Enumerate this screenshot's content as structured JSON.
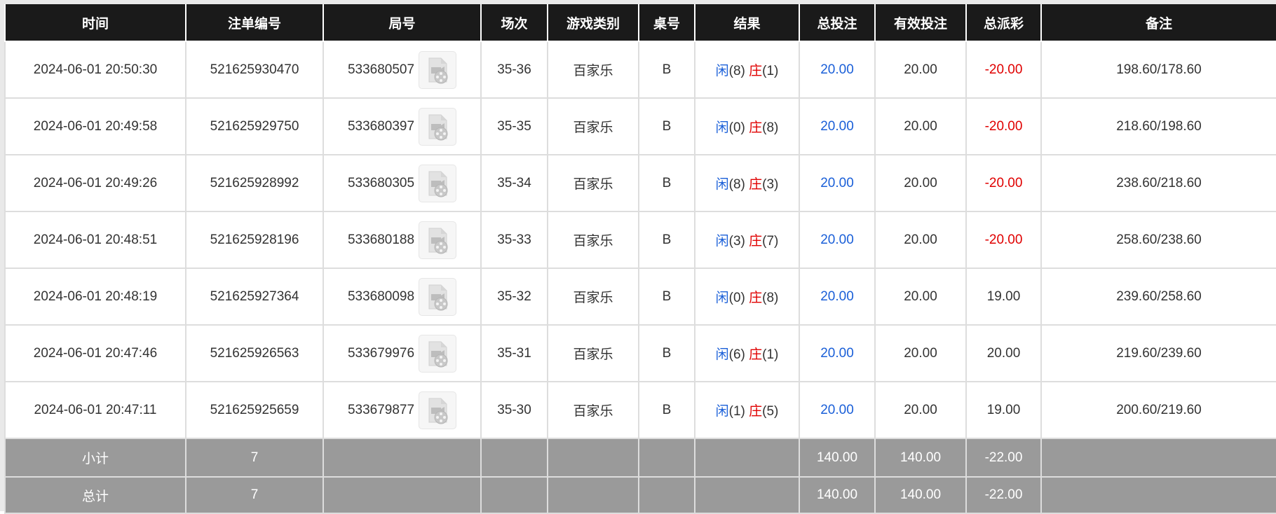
{
  "colors": {
    "header_bg": "#1a1a1a",
    "blue": "#1a5fd8",
    "red": "#e00000",
    "summary_bg": "#9a9a9a"
  },
  "headers": [
    "时间",
    "注单编号",
    "局号",
    "场次",
    "游戏类别",
    "桌号",
    "结果",
    "总投注",
    "有效投注",
    "总派彩",
    "备注"
  ],
  "player_label": "闲",
  "banker_label": "庄",
  "rows": [
    {
      "time": "2024-06-01 20:50:30",
      "bet_id": "521625930470",
      "round": "533680507",
      "shoe": "35-36",
      "game": "百家乐",
      "table": "B",
      "player": "(8)",
      "banker": "(1)",
      "total_bet": "20.00",
      "valid_bet": "20.00",
      "payout": "-20.00",
      "payout_neg": true,
      "note": "198.60/178.60"
    },
    {
      "time": "2024-06-01 20:49:58",
      "bet_id": "521625929750",
      "round": "533680397",
      "shoe": "35-35",
      "game": "百家乐",
      "table": "B",
      "player": "(0)",
      "banker": "(8)",
      "total_bet": "20.00",
      "valid_bet": "20.00",
      "payout": "-20.00",
      "payout_neg": true,
      "note": "218.60/198.60"
    },
    {
      "time": "2024-06-01 20:49:26",
      "bet_id": "521625928992",
      "round": "533680305",
      "shoe": "35-34",
      "game": "百家乐",
      "table": "B",
      "player": "(8)",
      "banker": "(3)",
      "total_bet": "20.00",
      "valid_bet": "20.00",
      "payout": "-20.00",
      "payout_neg": true,
      "note": "238.60/218.60"
    },
    {
      "time": "2024-06-01 20:48:51",
      "bet_id": "521625928196",
      "round": "533680188",
      "shoe": "35-33",
      "game": "百家乐",
      "table": "B",
      "player": "(3)",
      "banker": "(7)",
      "total_bet": "20.00",
      "valid_bet": "20.00",
      "payout": "-20.00",
      "payout_neg": true,
      "note": "258.60/238.60"
    },
    {
      "time": "2024-06-01 20:48:19",
      "bet_id": "521625927364",
      "round": "533680098",
      "shoe": "35-32",
      "game": "百家乐",
      "table": "B",
      "player": "(0)",
      "banker": "(8)",
      "total_bet": "20.00",
      "valid_bet": "20.00",
      "payout": "19.00",
      "payout_neg": false,
      "note": "239.60/258.60"
    },
    {
      "time": "2024-06-01 20:47:46",
      "bet_id": "521625926563",
      "round": "533679976",
      "shoe": "35-31",
      "game": "百家乐",
      "table": "B",
      "player": "(6)",
      "banker": "(1)",
      "total_bet": "20.00",
      "valid_bet": "20.00",
      "payout": "20.00",
      "payout_neg": false,
      "note": "219.60/239.60"
    },
    {
      "time": "2024-06-01 20:47:11",
      "bet_id": "521625925659",
      "round": "533679877",
      "shoe": "35-30",
      "game": "百家乐",
      "table": "B",
      "player": "(1)",
      "banker": "(5)",
      "total_bet": "20.00",
      "valid_bet": "20.00",
      "payout": "19.00",
      "payout_neg": false,
      "note": "200.60/219.60"
    }
  ],
  "subtotal": {
    "label": "小计",
    "count": "7",
    "total_bet": "140.00",
    "valid_bet": "140.00",
    "payout": "-22.00"
  },
  "total": {
    "label": "总计",
    "count": "7",
    "total_bet": "140.00",
    "valid_bet": "140.00",
    "payout": "-22.00"
  }
}
